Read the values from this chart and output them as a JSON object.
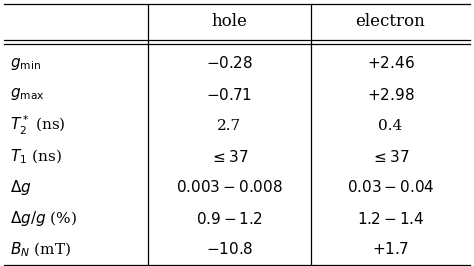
{
  "col_headers": [
    "hole",
    "electron"
  ],
  "row_labels": [
    "$g_{\\rm min}$",
    "$g_{\\rm max}$",
    "$T_2^*$ (ns)",
    "$T_1$ (ns)",
    "$\\Delta g$",
    "$\\Delta g/g$ (%)",
    "$B_N$ (mT)"
  ],
  "hole_values": [
    "$-0.28$",
    "$-0.71$",
    "2.7",
    "$\\leq 37$",
    "$0.003 - 0.008$",
    "$0.9 - 1.2$",
    "$-10.8$"
  ],
  "electron_values": [
    "$+2.46$",
    "$+2.98$",
    "0.4",
    "$\\leq 37$",
    "$0.03 - 0.04$",
    "$1.2 - 1.4$",
    "$+1.7$"
  ],
  "background_color": "#ffffff",
  "text_color": "#000000",
  "figsize": [
    4.74,
    2.66
  ],
  "dpi": 100,
  "fontsize": 11,
  "header_fontsize": 12
}
